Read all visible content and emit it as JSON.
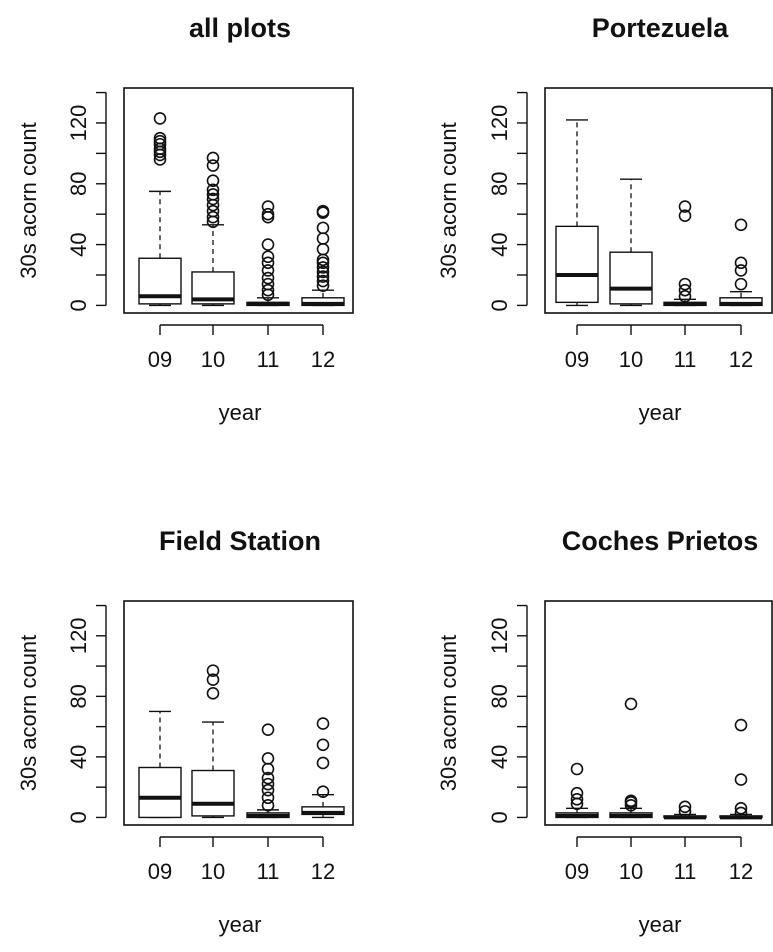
{
  "chart_data": [
    {
      "type": "box",
      "title": "all plots",
      "xlabel": "year",
      "ylabel": "30s acorn count",
      "categories": [
        "09",
        "10",
        "11",
        "12"
      ],
      "y_ticks": [
        "0",
        "40",
        "80",
        "120"
      ],
      "ylim": [
        -5,
        143
      ],
      "grid": false,
      "boxes": [
        {
          "whisker_low": 0,
          "q1": 1,
          "median": 6,
          "q3": 31,
          "whisker_high": 75,
          "outliers": [
            96,
            99,
            101,
            103,
            106,
            108,
            110,
            123
          ]
        },
        {
          "whisker_low": 0,
          "q1": 1,
          "median": 4,
          "q3": 22,
          "whisker_high": 53,
          "outliers": [
            55,
            58,
            62,
            66,
            70,
            73,
            76,
            82,
            92,
            97
          ]
        },
        {
          "whisker_low": 0,
          "q1": 0,
          "median": 1,
          "q3": 2,
          "whisker_high": 5,
          "outliers": [
            7,
            10,
            14,
            18,
            23,
            28,
            32,
            40,
            58,
            60,
            65
          ]
        },
        {
          "whisker_low": 0,
          "q1": 0,
          "median": 1,
          "q3": 5,
          "whisker_high": 10,
          "outliers": [
            13,
            16,
            19,
            22,
            25,
            28,
            30,
            37,
            44,
            51,
            61,
            62
          ]
        }
      ]
    },
    {
      "type": "box",
      "title": "Portezuela",
      "xlabel": "year",
      "ylabel": "30s acorn count",
      "categories": [
        "09",
        "10",
        "11",
        "12"
      ],
      "y_ticks": [
        "0",
        "40",
        "80",
        "120"
      ],
      "ylim": [
        -5,
        143
      ],
      "grid": false,
      "boxes": [
        {
          "whisker_low": 0,
          "q1": 2,
          "median": 20,
          "q3": 52,
          "whisker_high": 122,
          "outliers": []
        },
        {
          "whisker_low": 0,
          "q1": 1,
          "median": 11,
          "q3": 35,
          "whisker_high": 83,
          "outliers": []
        },
        {
          "whisker_low": 0,
          "q1": 0,
          "median": 1,
          "q3": 2,
          "whisker_high": 4,
          "outliers": [
            6,
            10,
            14,
            59,
            65
          ]
        },
        {
          "whisker_low": 0,
          "q1": 0,
          "median": 1,
          "q3": 5,
          "whisker_high": 9,
          "outliers": [
            14,
            23,
            28,
            53
          ]
        }
      ]
    },
    {
      "type": "box",
      "title": "Field Station",
      "xlabel": "year",
      "ylabel": "30s acorn count",
      "categories": [
        "09",
        "10",
        "11",
        "12"
      ],
      "y_ticks": [
        "0",
        "40",
        "80",
        "120"
      ],
      "ylim": [
        -5,
        143
      ],
      "grid": false,
      "boxes": [
        {
          "whisker_low": 0,
          "q1": 0,
          "median": 13,
          "q3": 33,
          "whisker_high": 70,
          "outliers": []
        },
        {
          "whisker_low": 0,
          "q1": 1,
          "median": 9,
          "q3": 31,
          "whisker_high": 63,
          "outliers": [
            82,
            91,
            97
          ]
        },
        {
          "whisker_low": 0,
          "q1": 0,
          "median": 1,
          "q3": 3,
          "whisker_high": 5,
          "outliers": [
            8,
            13,
            18,
            22,
            26,
            32,
            39,
            58
          ]
        },
        {
          "whisker_low": 0,
          "q1": 2,
          "median": 3,
          "q3": 7,
          "whisker_high": 15,
          "outliers": [
            17,
            36,
            48,
            62
          ]
        }
      ]
    },
    {
      "type": "box",
      "title": "Coches Prietos",
      "xlabel": "year",
      "ylabel": "30s acorn count",
      "categories": [
        "09",
        "10",
        "11",
        "12"
      ],
      "y_ticks": [
        "0",
        "40",
        "80",
        "120"
      ],
      "ylim": [
        -5,
        143
      ],
      "grid": false,
      "boxes": [
        {
          "whisker_low": 0,
          "q1": 0,
          "median": 1,
          "q3": 3,
          "whisker_high": 6,
          "outliers": [
            9,
            12,
            16,
            32
          ]
        },
        {
          "whisker_low": 0,
          "q1": 0,
          "median": 1,
          "q3": 3,
          "whisker_high": 6,
          "outliers": [
            8,
            10,
            11,
            75
          ]
        },
        {
          "whisker_low": 0,
          "q1": 0,
          "median": 0,
          "q3": 1,
          "whisker_high": 2,
          "outliers": [
            4,
            7
          ]
        },
        {
          "whisker_low": 0,
          "q1": 0,
          "median": 0,
          "q3": 1,
          "whisker_high": 2,
          "outliers": [
            3,
            6,
            25,
            61
          ]
        }
      ]
    }
  ]
}
